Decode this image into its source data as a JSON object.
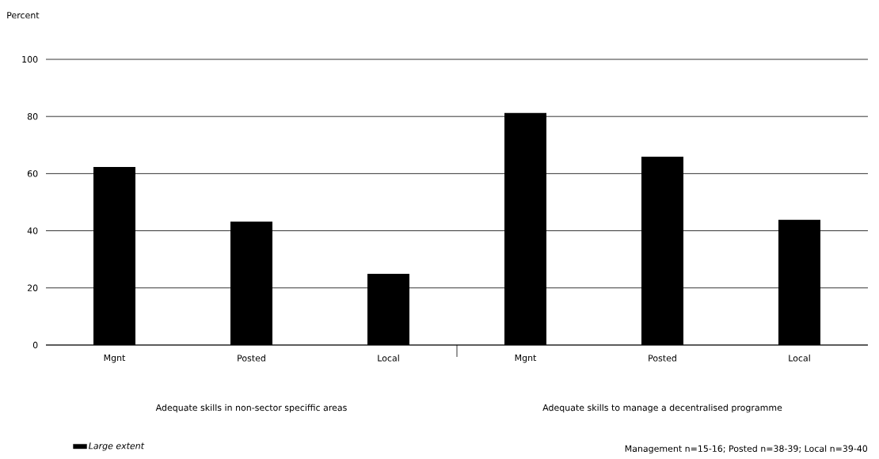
{
  "chart_data": {
    "type": "bar",
    "ylabel": "Percent",
    "categories": [
      "Mgnt",
      "Posted",
      "Local",
      "Mgnt",
      "Posted",
      "Local"
    ],
    "series": [
      {
        "name": "Large extent",
        "color": "#000000",
        "values": [
          62.3,
          43.2,
          24.9,
          81.2,
          65.9,
          43.8
        ]
      }
    ],
    "ylim": [
      0,
      100
    ],
    "yticks": [
      0,
      20,
      40,
      60,
      80,
      100
    ],
    "grid": "y",
    "legend": "bottom left",
    "annotations": [
      "Adequate skills in non-sector speciffic areas",
      "Adequate skills to manage a decentralised programme",
      "Management n=15-16;  Posted n=38-39;  Local n=39-40"
    ]
  }
}
